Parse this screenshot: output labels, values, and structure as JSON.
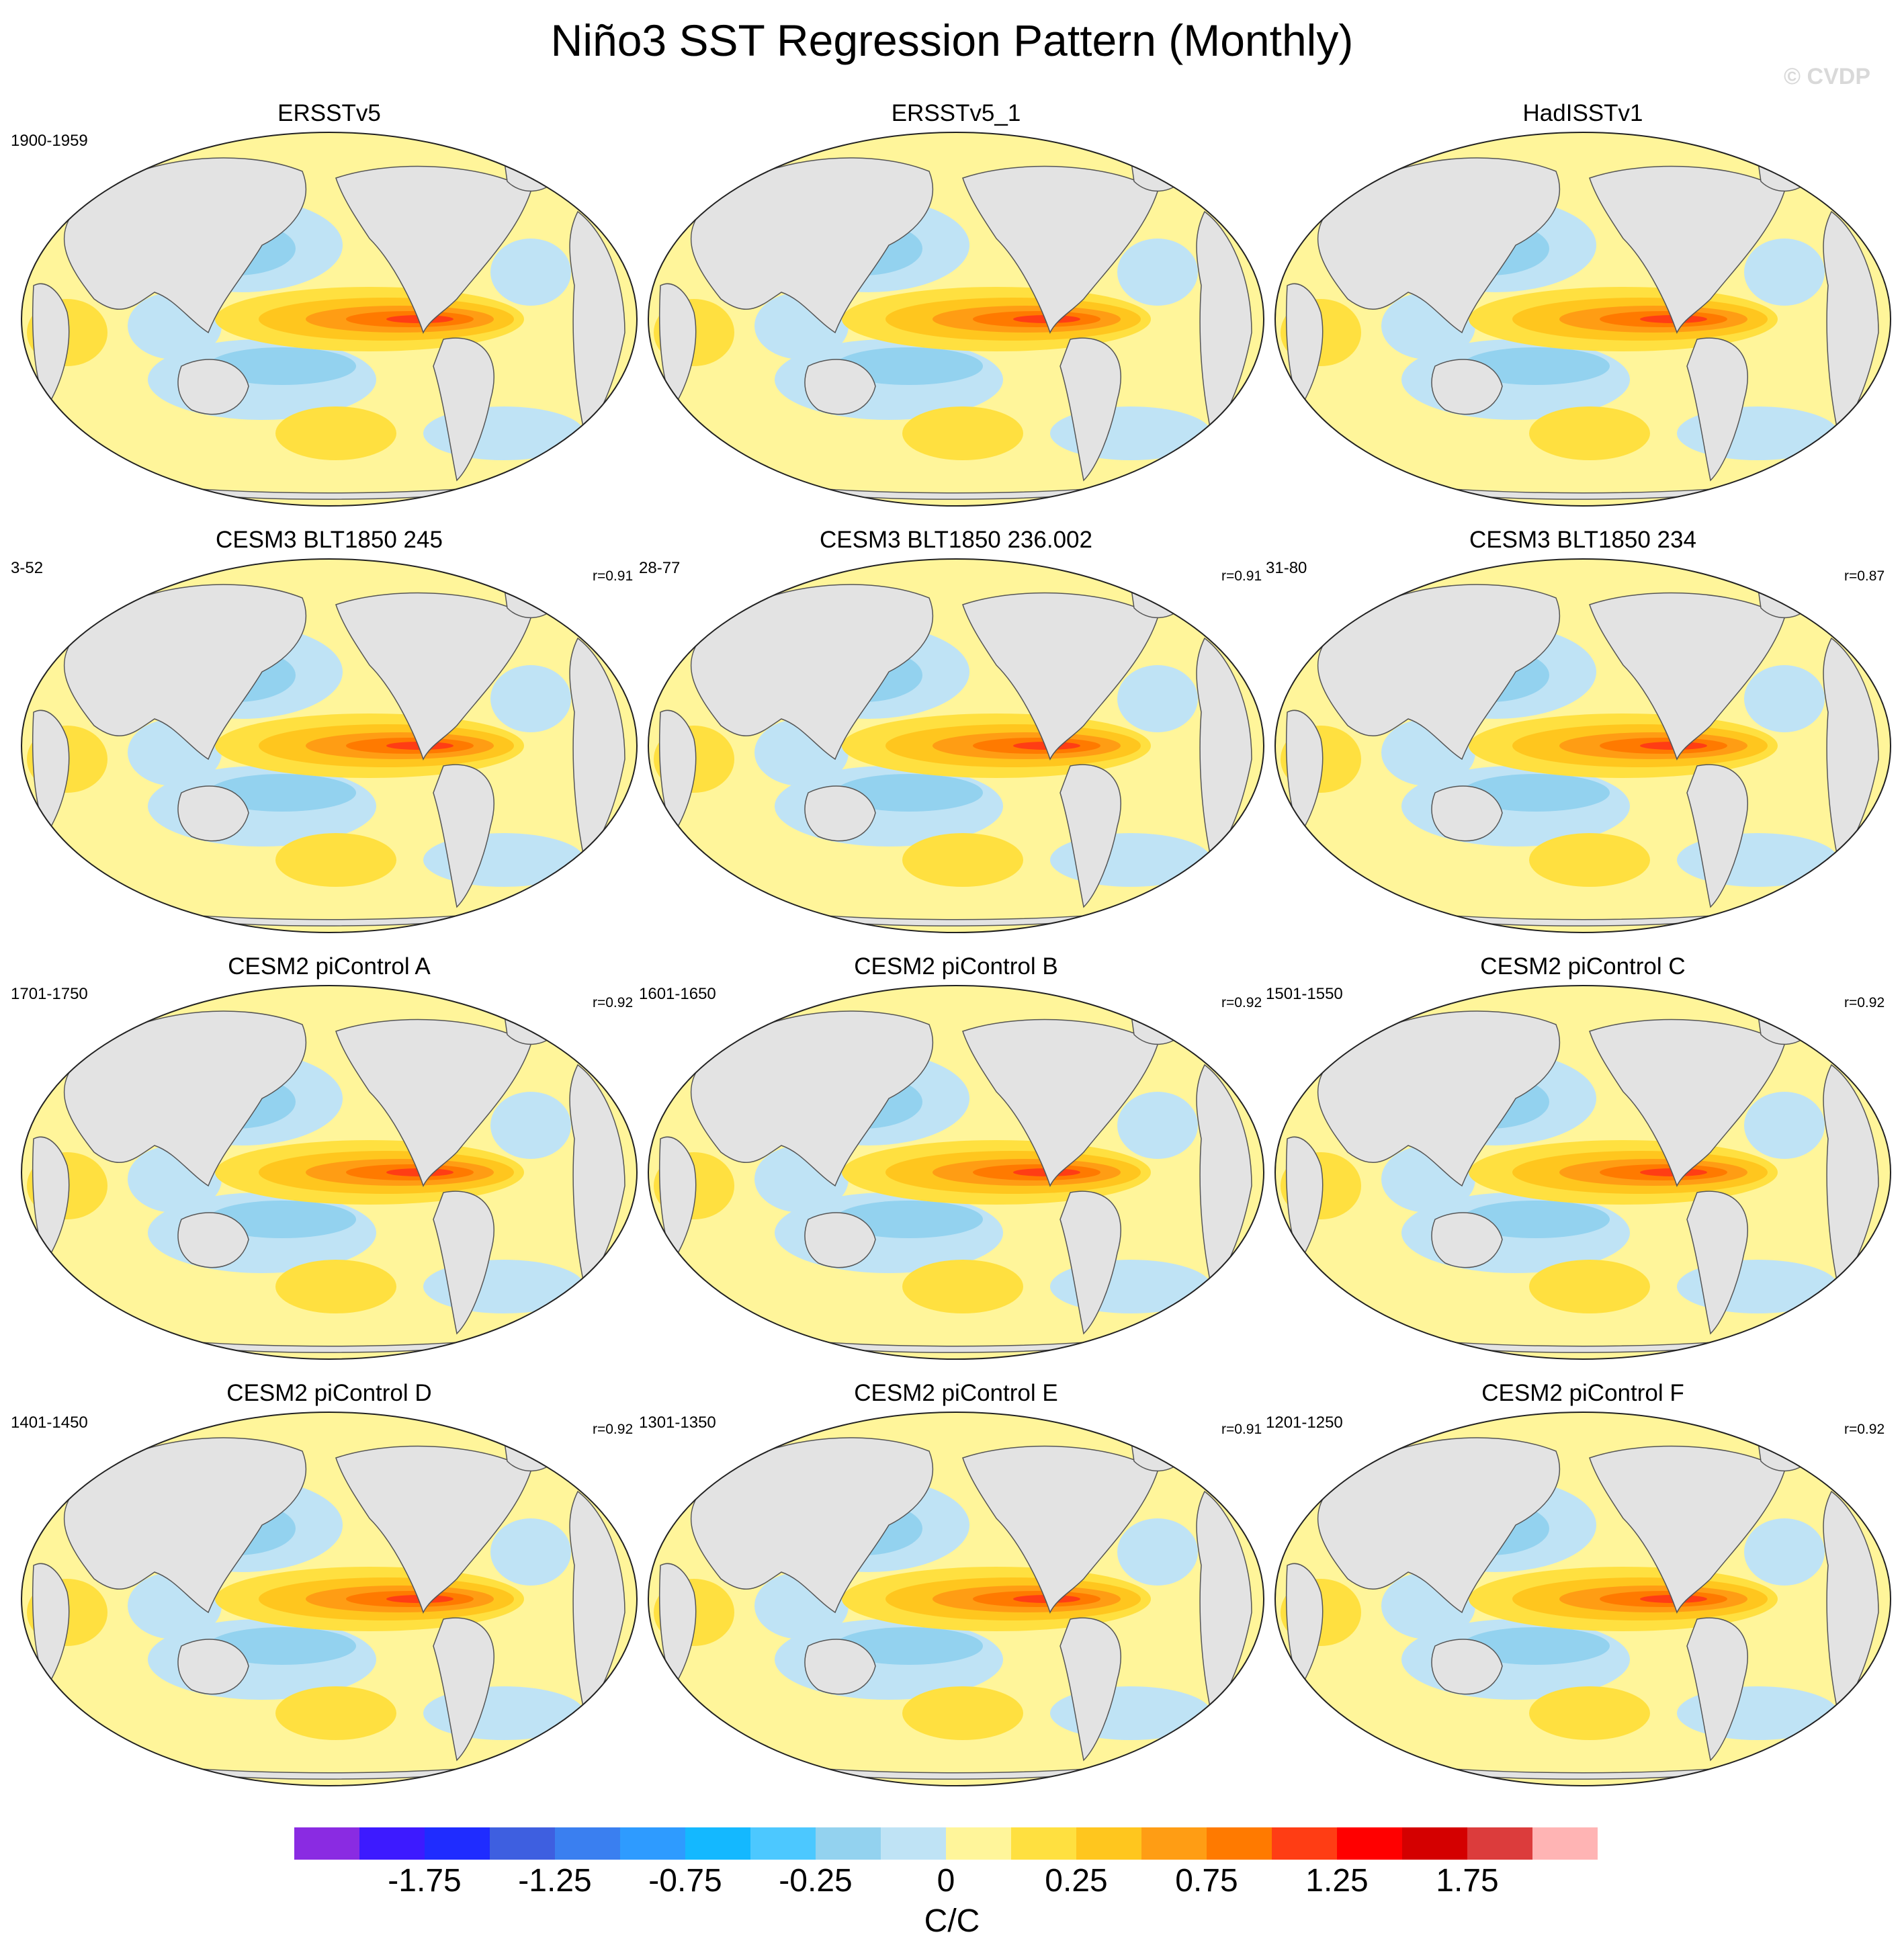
{
  "figure": {
    "title": "Niño3 SST Regression Pattern (Monthly)",
    "copyright": "© CVDP"
  },
  "panels": [
    {
      "title": "ERSSTv5",
      "period": "1900-1959",
      "corr": ""
    },
    {
      "title": "ERSSTv5_1",
      "period": "",
      "corr": ""
    },
    {
      "title": "HadISSTv1",
      "period": "",
      "corr": ""
    },
    {
      "title": "CESM3 BLT1850 245",
      "period": "3-52",
      "corr": "r=0.91"
    },
    {
      "title": "CESM3 BLT1850 236.002",
      "period": "28-77",
      "corr": "r=0.91"
    },
    {
      "title": "CESM3 BLT1850 234",
      "period": "31-80",
      "corr": "r=0.87"
    },
    {
      "title": "CESM2 piControl A",
      "period": "1701-1750",
      "corr": "r=0.92"
    },
    {
      "title": "CESM2 piControl B",
      "period": "1601-1650",
      "corr": "r=0.92"
    },
    {
      "title": "CESM2 piControl C",
      "period": "1501-1550",
      "corr": "r=0.92"
    },
    {
      "title": "CESM2 piControl D",
      "period": "1401-1450",
      "corr": "r=0.92"
    },
    {
      "title": "CESM2 piControl E",
      "period": "1301-1350",
      "corr": "r=0.91"
    },
    {
      "title": "CESM2 piControl F",
      "period": "1201-1250",
      "corr": "r=0.92"
    }
  ],
  "colorbar": {
    "units": "C/C",
    "colors": [
      "#8a2be2",
      "#3d1aff",
      "#1f2cff",
      "#3e5fe0",
      "#3a7ff0",
      "#2e9bff",
      "#14b8ff",
      "#4cc8ff",
      "#93d2ef",
      "#bfe3f5",
      "#fff59a",
      "#ffe040",
      "#ffc61e",
      "#ff9d14",
      "#ff7a00",
      "#ff3d14",
      "#ff0000",
      "#d40000",
      "#dc3c3c",
      "#ffb4b4"
    ],
    "labels": [
      "-1.75",
      "-1.25",
      "-0.75",
      "-0.25",
      "0",
      "0.25",
      "0.75",
      "1.25",
      "1.75"
    ]
  }
}
